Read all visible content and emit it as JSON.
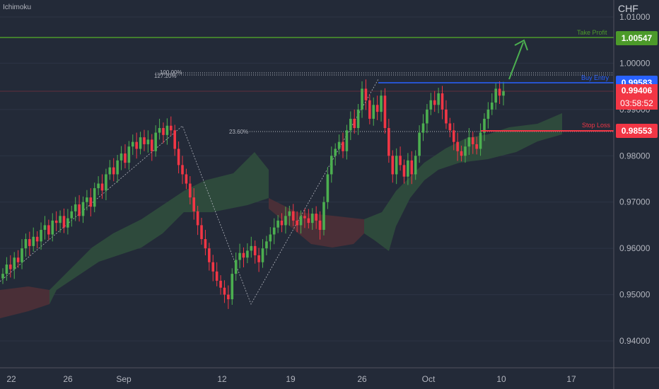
{
  "indicator_label": "Ichimoku",
  "axis_currency": "CHF",
  "current_price": "0.99406",
  "countdown": "03:58:52",
  "levels": {
    "take_profit": {
      "label": "Take Profit",
      "value": 1.00547,
      "display": "1.00547",
      "color": "#4c9a2a"
    },
    "buy_entry": {
      "label": "Buy Entry",
      "value": 0.99583,
      "display": "0.99583",
      "color": "#2962ff"
    },
    "stop_loss": {
      "label": "Stop Loss",
      "value": 0.98553,
      "display": "0.98553",
      "color": "#f23645"
    }
  },
  "fib": {
    "upper_a": "100.00%",
    "upper_b": "127.20%",
    "lower": "23.60%"
  },
  "colors": {
    "background": "#232a38",
    "bull": "#4caf50",
    "bear": "#f23645",
    "cloud_green": "#2e4a3c",
    "cloud_red": "#4a2f37",
    "grid": "#2d3445",
    "axis": "#b2b5be"
  },
  "chart_data": {
    "type": "candlestick",
    "y_ticks": [
      "1.01000",
      "1.00000",
      "0.99000",
      "0.98000",
      "0.97000",
      "0.96000",
      "0.95000",
      "0.94000"
    ],
    "x_ticks": [
      "22",
      "26",
      "Sep",
      "12",
      "19",
      "26",
      "Oct",
      "10",
      "17"
    ],
    "ylim": [
      0.9335,
      1.0135
    ],
    "closes": [
      0.9545,
      0.9565,
      0.9555,
      0.958,
      0.957,
      0.96,
      0.962,
      0.9605,
      0.9625,
      0.9615,
      0.964,
      0.965,
      0.963,
      0.966,
      0.9655,
      0.967,
      0.9645,
      0.9665,
      0.968,
      0.9695,
      0.967,
      0.97,
      0.971,
      0.969,
      0.973,
      0.974,
      0.9725,
      0.976,
      0.9775,
      0.976,
      0.979,
      0.9805,
      0.9785,
      0.982,
      0.983,
      0.9815,
      0.984,
      0.9825,
      0.9835,
      0.981,
      0.985,
      0.986,
      0.9845,
      0.9865,
      0.9855,
      0.9815,
      0.978,
      0.976,
      0.974,
      0.971,
      0.968,
      0.965,
      0.962,
      0.96,
      0.957,
      0.955,
      0.953,
      0.9515,
      0.95,
      0.949,
      0.9545,
      0.9575,
      0.959,
      0.958,
      0.9595,
      0.9605,
      0.9585,
      0.957,
      0.96,
      0.9615,
      0.963,
      0.9645,
      0.966,
      0.965,
      0.967,
      0.968,
      0.966,
      0.965,
      0.967,
      0.9665,
      0.9655,
      0.9675,
      0.966,
      0.964,
      0.97,
      0.976,
      0.98,
      0.9815,
      0.983,
      0.981,
      0.9855,
      0.988,
      0.986,
      0.99,
      0.9945,
      0.992,
      0.988,
      0.991,
      0.9895,
      0.993,
      0.986,
      0.98,
      0.976,
      0.98,
      0.978,
      0.9755,
      0.979,
      0.976,
      0.98,
      0.985,
      0.987,
      0.99,
      0.992,
      0.991,
      0.9935,
      0.99,
      0.987,
      0.9855,
      0.983,
      0.981,
      0.98,
      0.982,
      0.984,
      0.9825,
      0.9815,
      0.985,
      0.988,
      0.99,
      0.9915,
      0.9945,
      0.993,
      0.994
    ]
  }
}
